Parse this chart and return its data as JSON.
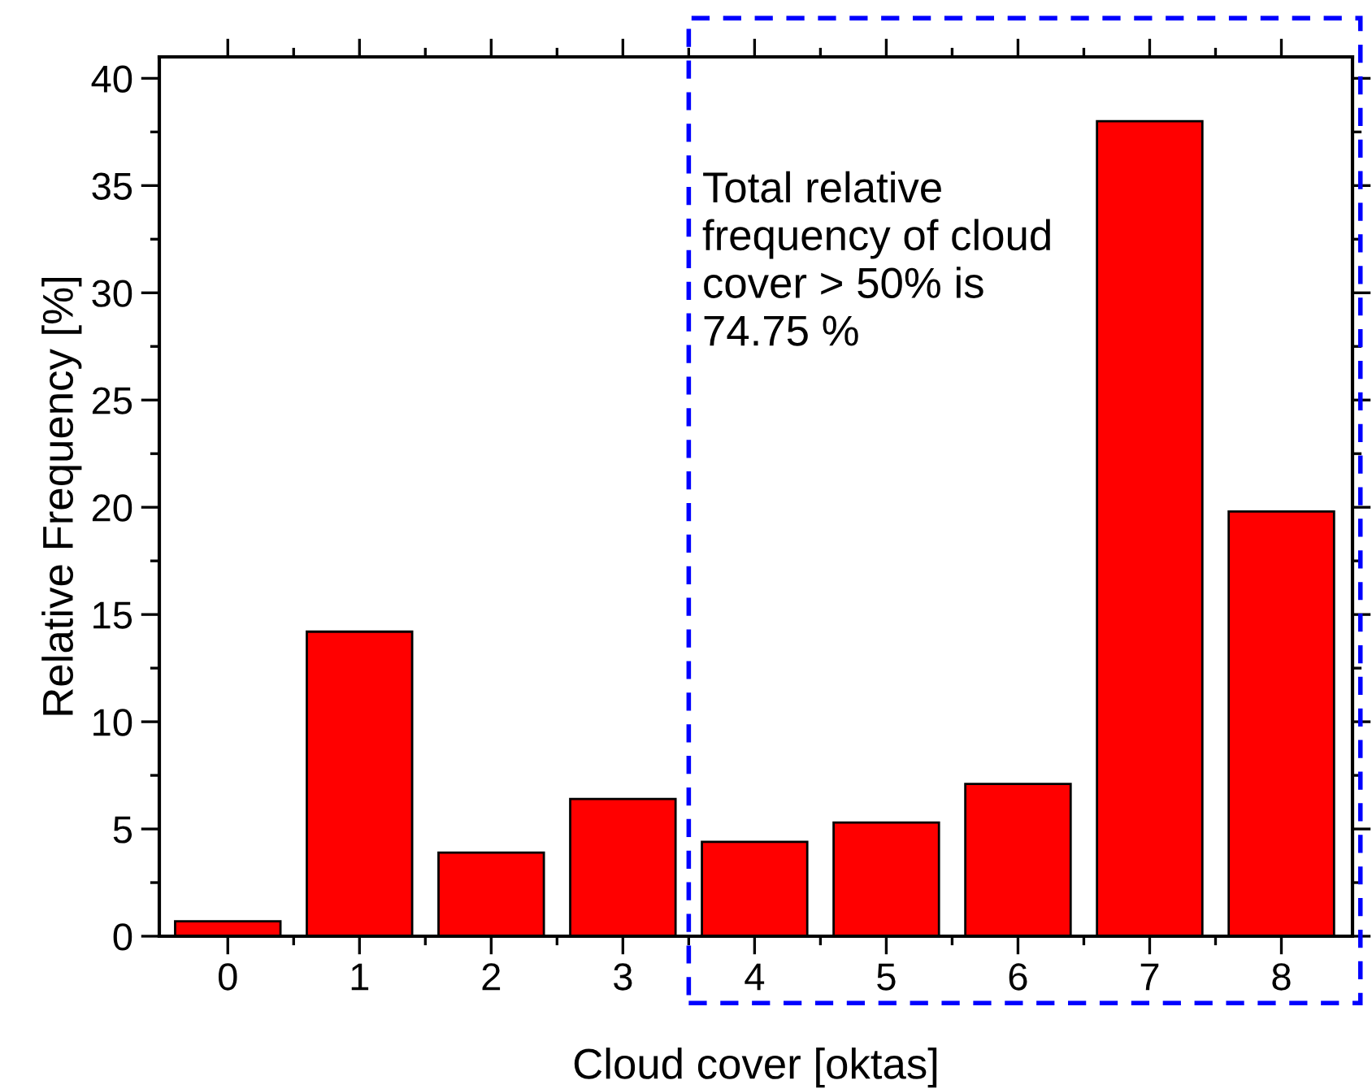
{
  "chart_data": {
    "type": "bar",
    "xlabel": "Cloud cover [oktas]",
    "ylabel": "Relative Frequency [%]",
    "categories": [
      "0",
      "1",
      "2",
      "3",
      "4",
      "5",
      "6",
      "7",
      "8"
    ],
    "values": [
      0.7,
      14.2,
      3.9,
      6.4,
      4.4,
      5.3,
      7.1,
      38.0,
      19.8
    ],
    "color": "#ff0000",
    "ylim": [
      0,
      41
    ],
    "yticks": [
      0,
      5,
      10,
      15,
      20,
      25,
      30,
      35,
      40
    ],
    "grid": false,
    "annotations": [
      "Total relative\nfrequency of cloud\ncover > 50% is\n74.75 %"
    ]
  }
}
